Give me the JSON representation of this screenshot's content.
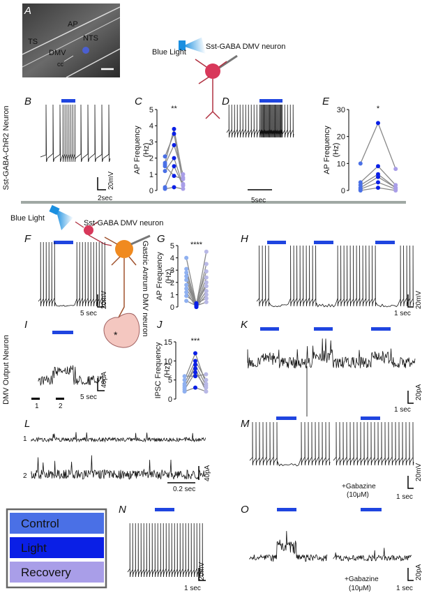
{
  "figure": {
    "panel_labels": [
      "A",
      "B",
      "C",
      "D",
      "E",
      "F",
      "G",
      "H",
      "I",
      "J",
      "K",
      "L",
      "M",
      "N",
      "O"
    ],
    "image_labels": [
      "AP",
      "TS",
      "NTS",
      "DMV",
      "cc"
    ],
    "side_labels": [
      "Sst-GABA-ChR2 Neuron",
      "DMV Output Neuron"
    ],
    "diagram_labels": [
      "Blue Light",
      "Sst-GABA DMV neuron",
      "Blue Light",
      "Sst-GABA DMV neuron",
      "Gastric Antrum DMV neuron",
      "*"
    ],
    "scale_labels": {
      "B": [
        "20mV",
        "2sec"
      ],
      "D": [
        "5sec"
      ],
      "F": [
        "20mV",
        "5 sec"
      ],
      "H": [
        "20mV",
        "1 sec"
      ],
      "I": [
        "40pA",
        "5 sec",
        "1",
        "2"
      ],
      "K": [
        "20pA",
        "1 sec"
      ],
      "L": [
        "1",
        "2",
        "40pA",
        "0.2 sec"
      ],
      "M": [
        "+Gabazine",
        "(10μM)",
        "20mV",
        "1 sec"
      ],
      "N": [
        "20mV",
        "1 sec"
      ],
      "O": [
        "+Gabazine",
        "(10μM)",
        "20pA",
        "1 sec"
      ]
    }
  },
  "chart_data": [
    {
      "type": "line",
      "ylabel": [
        "AP Frequency",
        "(Hz)"
      ],
      "annotation": "**",
      "ylim": [
        0,
        5
      ],
      "yticks": [
        0,
        1,
        2,
        3,
        4,
        5
      ],
      "series": [
        {
          "name": "Control",
          "color": "#4a70e6",
          "values": [
            1.7,
            1.6,
            2.1,
            1.2,
            0.2,
            0.1,
            1.5
          ]
        },
        {
          "name": "Light",
          "color": "#0a1fe6",
          "values": [
            3.8,
            2.8,
            3.5,
            2.0,
            1.5,
            0.2,
            0.9
          ]
        },
        {
          "name": "Recovery",
          "color": "#a99ee8",
          "values": [
            0.8,
            1.0,
            0.4,
            0.3,
            0.3,
            0.1,
            0.7
          ]
        }
      ]
    },
    {
      "type": "line",
      "ylabel": [
        "AP Frequency",
        "(Hz)"
      ],
      "annotation": "*",
      "ylim": [
        0,
        30
      ],
      "yticks": [
        0,
        10,
        20,
        30
      ],
      "series": [
        {
          "color": "#4a70e6",
          "values": [
            10,
            3,
            2,
            1,
            0.5,
            0
          ]
        },
        {
          "color": "#0a1fe6",
          "values": [
            25,
            9,
            6,
            5,
            3,
            1
          ]
        },
        {
          "color": "#a99ee8",
          "values": [
            8,
            2,
            1,
            1,
            0.5,
            0
          ]
        }
      ]
    },
    {
      "type": "line",
      "ylabel": [
        "AP Frequency",
        "(Hz)"
      ],
      "annotation": "****",
      "ylim": [
        0,
        5
      ],
      "yticks": [
        0,
        1,
        2,
        3,
        4,
        5
      ],
      "series": [
        {
          "color": "#8fb0f0",
          "values": [
            4,
            3.1,
            2.8,
            2.5,
            2.2,
            1.8,
            1.5,
            1.2,
            0.9,
            0.5
          ]
        },
        {
          "color": "#0a1fe6",
          "values": [
            0.2,
            0.1,
            0.3,
            0.1,
            0,
            0.2,
            0.1,
            0,
            0.3,
            0.1
          ]
        },
        {
          "color": "#b8b8e6",
          "values": [
            4.5,
            3.5,
            2.9,
            2.4,
            2.0,
            1.7,
            1.3,
            1.0,
            0.7,
            0.4
          ]
        }
      ]
    },
    {
      "type": "line",
      "ylabel": [
        "IPSC Frequency",
        "(Hz)"
      ],
      "annotation": "***",
      "ylim": [
        0,
        15
      ],
      "yticks": [
        0,
        5,
        10,
        15
      ],
      "series": [
        {
          "color": "#8fb0f0",
          "values": [
            5,
            4,
            3,
            3.5,
            2.5,
            6,
            2
          ]
        },
        {
          "color": "#0a1fe6",
          "values": [
            12,
            10,
            9,
            8,
            7,
            6,
            3
          ]
        },
        {
          "color": "#b8b8e6",
          "values": [
            4,
            5,
            3.5,
            2,
            3,
            6.5,
            2
          ]
        }
      ]
    }
  ]
}
